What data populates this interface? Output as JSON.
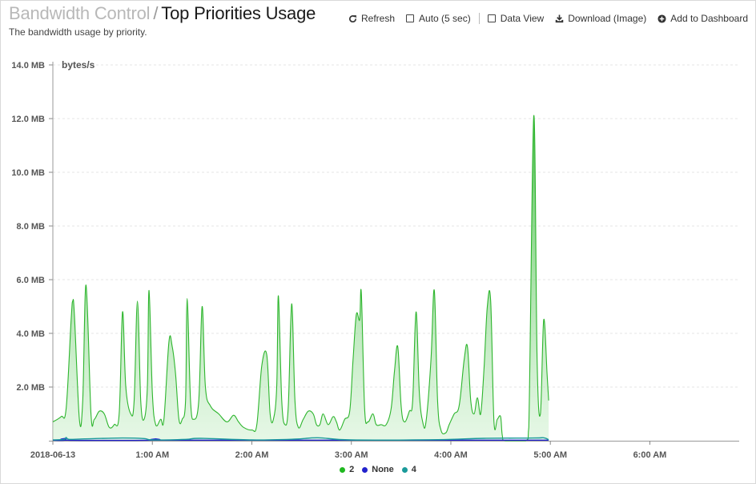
{
  "header": {
    "parent_title": "Bandwidth Control",
    "separator": "/",
    "title": "Top Priorities Usage",
    "subtitle": "The bandwidth usage by priority."
  },
  "toolbar": {
    "refresh_label": "Refresh",
    "auto_label": "Auto (5 sec)",
    "auto_checked": false,
    "data_view_label": "Data View",
    "data_view_checked": false,
    "download_label": "Download (Image)",
    "add_dashboard_label": "Add to Dashboard"
  },
  "chart_data": {
    "type": "area",
    "ylabel": "bytes/s",
    "ylim": [
      0,
      14
    ],
    "y_unit": "MB",
    "yticks": [
      "2.0 MB",
      "4.0 MB",
      "6.0 MB",
      "8.0 MB",
      "10.0 MB",
      "12.0 MB",
      "14.0 MB"
    ],
    "ytick_values": [
      2,
      4,
      6,
      8,
      10,
      12,
      14
    ],
    "xlim": [
      "2018-06-13 00:00",
      "2018-06-13 06:50"
    ],
    "xticks": [
      "2018-06-13",
      "1:00 AM",
      "2:00 AM",
      "3:00 AM",
      "4:00 AM",
      "5:00 AM",
      "6:00 AM"
    ],
    "xtick_times": [
      "00:00",
      "01:00",
      "02:00",
      "03:00",
      "04:00",
      "05:00",
      "06:00"
    ],
    "grid": true,
    "legend_position": "bottom-center",
    "series": [
      {
        "name": "2",
        "color": "#2db52d",
        "points": [
          [
            "00:00",
            0.7
          ],
          [
            "00:05",
            0.9
          ],
          [
            "00:08",
            1.2
          ],
          [
            "00:11",
            4.5
          ],
          [
            "00:12",
            5.2
          ],
          [
            "00:13",
            4.7
          ],
          [
            "00:16",
            0.8
          ],
          [
            "00:18",
            1.5
          ],
          [
            "00:20",
            5.8
          ],
          [
            "00:23",
            1.0
          ],
          [
            "00:25",
            0.8
          ],
          [
            "00:28",
            1.1
          ],
          [
            "00:31",
            1.0
          ],
          [
            "00:34",
            0.5
          ],
          [
            "00:37",
            0.6
          ],
          [
            "00:40",
            1.0
          ],
          [
            "00:42",
            4.8
          ],
          [
            "00:44",
            2.0
          ],
          [
            "00:47",
            1.0
          ],
          [
            "00:49",
            1.5
          ],
          [
            "00:51",
            5.2
          ],
          [
            "00:53",
            1.5
          ],
          [
            "00:55",
            0.8
          ],
          [
            "00:57",
            2.0
          ],
          [
            "00:58",
            5.6
          ],
          [
            "01:00",
            1.8
          ],
          [
            "01:02",
            0.6
          ],
          [
            "01:05",
            0.8
          ],
          [
            "01:07",
            0.8
          ],
          [
            "01:10",
            3.7
          ],
          [
            "01:12",
            3.5
          ],
          [
            "01:14",
            2.5
          ],
          [
            "01:16",
            0.8
          ],
          [
            "01:18",
            0.8
          ],
          [
            "01:20",
            1.5
          ],
          [
            "01:21",
            5.3
          ],
          [
            "01:23",
            1.5
          ],
          [
            "01:25",
            0.8
          ],
          [
            "01:28",
            1.5
          ],
          [
            "01:30",
            5.0
          ],
          [
            "01:32",
            2.0
          ],
          [
            "01:35",
            1.3
          ],
          [
            "01:40",
            1.0
          ],
          [
            "01:45",
            0.7
          ],
          [
            "01:49",
            0.95
          ],
          [
            "01:52",
            0.7
          ],
          [
            "01:55",
            0.5
          ],
          [
            "02:00",
            0.4
          ],
          [
            "02:03",
            0.6
          ],
          [
            "02:06",
            2.8
          ],
          [
            "02:09",
            3.2
          ],
          [
            "02:11",
            1.0
          ],
          [
            "02:13",
            0.8
          ],
          [
            "02:15",
            2.0
          ],
          [
            "02:16",
            5.4
          ],
          [
            "02:18",
            1.5
          ],
          [
            "02:20",
            0.6
          ],
          [
            "02:22",
            1.3
          ],
          [
            "02:24",
            5.1
          ],
          [
            "02:26",
            1.5
          ],
          [
            "02:28",
            0.5
          ],
          [
            "02:31",
            0.8
          ],
          [
            "02:34",
            1.1
          ],
          [
            "02:37",
            1.0
          ],
          [
            "02:39",
            0.6
          ],
          [
            "02:41",
            0.6
          ],
          [
            "02:43",
            1.0
          ],
          [
            "02:46",
            0.6
          ],
          [
            "02:49",
            0.9
          ],
          [
            "02:51",
            0.7
          ],
          [
            "02:53",
            0.4
          ],
          [
            "02:56",
            0.8
          ],
          [
            "02:59",
            1.1
          ],
          [
            "03:01",
            3.0
          ],
          [
            "03:03",
            4.7
          ],
          [
            "03:05",
            4.5
          ],
          [
            "03:06",
            5.5
          ],
          [
            "03:08",
            1.2
          ],
          [
            "03:10",
            0.7
          ],
          [
            "03:13",
            1.0
          ],
          [
            "03:15",
            0.6
          ],
          [
            "03:18",
            0.6
          ],
          [
            "03:21",
            0.6
          ],
          [
            "03:24",
            1.2
          ],
          [
            "03:26",
            2.6
          ],
          [
            "03:28",
            3.5
          ],
          [
            "03:30",
            1.3
          ],
          [
            "03:32",
            0.7
          ],
          [
            "03:35",
            1.1
          ],
          [
            "03:37",
            1.5
          ],
          [
            "03:39",
            4.8
          ],
          [
            "03:41",
            1.8
          ],
          [
            "03:43",
            0.7
          ],
          [
            "03:45",
            0.7
          ],
          [
            "03:48",
            3.0
          ],
          [
            "03:50",
            5.6
          ],
          [
            "03:52",
            1.5
          ],
          [
            "03:54",
            0.4
          ],
          [
            "03:57",
            0.3
          ],
          [
            "03:59",
            0.6
          ],
          [
            "04:02",
            1.0
          ],
          [
            "04:05",
            1.3
          ],
          [
            "04:08",
            3.0
          ],
          [
            "04:10",
            3.5
          ],
          [
            "04:12",
            1.5
          ],
          [
            "04:14",
            1.0
          ],
          [
            "04:16",
            1.6
          ],
          [
            "04:18",
            1.0
          ],
          [
            "04:20",
            2.7
          ],
          [
            "04:22",
            5.0
          ],
          [
            "04:24",
            5.2
          ],
          [
            "04:26",
            0.7
          ],
          [
            "04:28",
            0.8
          ],
          [
            "04:30",
            0.9
          ],
          [
            "04:31",
            0.2
          ],
          [
            "04:33",
            0.0
          ],
          [
            "04:45",
            0.0
          ],
          [
            "04:47",
            0.5
          ],
          [
            "04:50",
            12.1
          ],
          [
            "04:52",
            3.0
          ],
          [
            "04:54",
            1.0
          ],
          [
            "04:56",
            4.5
          ],
          [
            "04:58",
            2.5
          ],
          [
            "04:59",
            1.5
          ]
        ]
      },
      {
        "name": "None",
        "color": "#2222cc",
        "points": [
          [
            "00:00",
            0.02
          ],
          [
            "00:07",
            0.02
          ],
          [
            "00:08",
            0.09
          ],
          [
            "00:09",
            0.02
          ],
          [
            "01:00",
            0.02
          ],
          [
            "01:02",
            0.07
          ],
          [
            "01:04",
            0.02
          ],
          [
            "02:00",
            0.02
          ],
          [
            "03:00",
            0.02
          ],
          [
            "04:00",
            0.02
          ],
          [
            "04:59",
            0.02
          ]
        ]
      },
      {
        "name": "4",
        "color": "#1a9a9a",
        "points": [
          [
            "00:00",
            0.03
          ],
          [
            "00:07",
            0.05
          ],
          [
            "00:08",
            0.12
          ],
          [
            "00:10",
            0.05
          ],
          [
            "00:19",
            0.07
          ],
          [
            "00:42",
            0.1
          ],
          [
            "00:55",
            0.08
          ],
          [
            "01:00",
            0.03
          ],
          [
            "01:20",
            0.05
          ],
          [
            "01:29",
            0.09
          ],
          [
            "02:00",
            0.03
          ],
          [
            "02:26",
            0.06
          ],
          [
            "02:40",
            0.11
          ],
          [
            "03:00",
            0.03
          ],
          [
            "03:52",
            0.04
          ],
          [
            "04:20",
            0.09
          ],
          [
            "04:50",
            0.1
          ],
          [
            "04:56",
            0.11
          ],
          [
            "04:59",
            0.04
          ]
        ]
      }
    ]
  },
  "legend": {
    "items": [
      {
        "label": "2",
        "color": "#1fb81f"
      },
      {
        "label": "None",
        "color": "#2222cc"
      },
      {
        "label": "4",
        "color": "#1a9a9a"
      }
    ]
  }
}
